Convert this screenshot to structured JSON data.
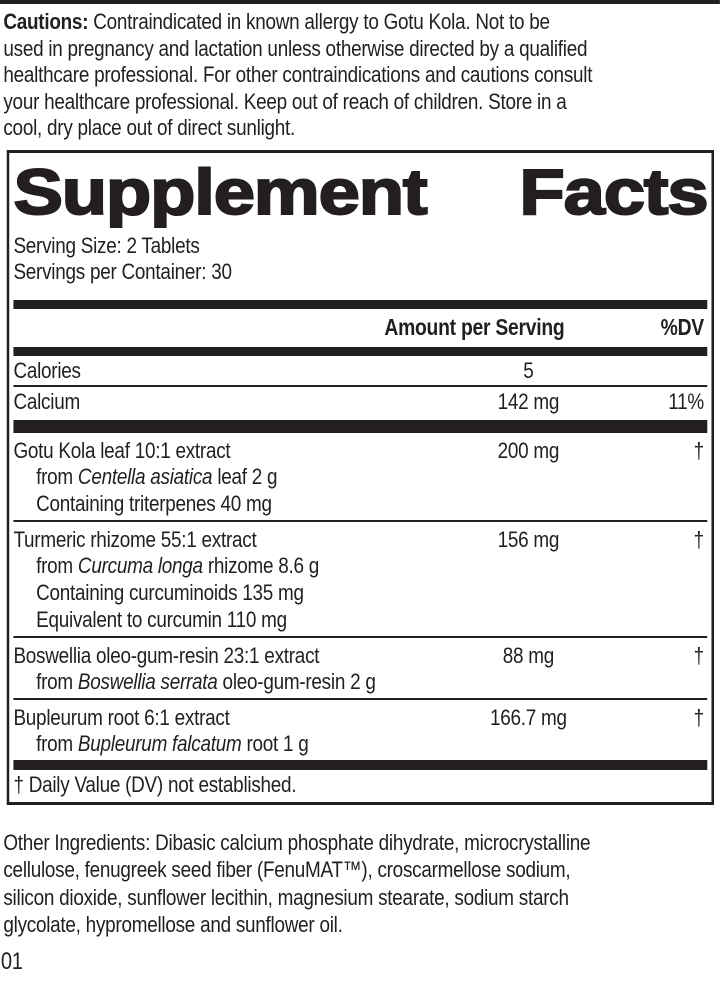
{
  "colors": {
    "ink": "#231f20"
  },
  "cautions": {
    "label": "Cautions:",
    "lines": [
      " Contraindicated in known allergy to Gotu Kola. Not to be",
      "used in pregnancy and lactation unless otherwise directed by a qualified",
      "healthcare professional. For other contraindications and cautions consult",
      "your healthcare professional. Keep out of reach of children. Store in a",
      "cool, dry place out of direct sunlight."
    ]
  },
  "facts": {
    "title_word1": "Supplement",
    "title_word2": "Facts",
    "serving_size": "Serving Size: 2 Tablets",
    "servings_per_container": "Servings per Container: 30",
    "columns": {
      "amount": "Amount per Serving",
      "dv": "%DV"
    },
    "nutrients": [
      {
        "name": "Calories",
        "amount": "5",
        "dv": ""
      },
      {
        "name": "Calcium",
        "amount": "142 mg",
        "dv": "11%"
      }
    ],
    "ingredients": [
      {
        "name": "Gotu Kola leaf 10:1 extract",
        "amount": "200 mg",
        "dv": "†",
        "subs": [
          {
            "pre": "from ",
            "italic": "Centella asiatica",
            "post": " leaf 2 g"
          },
          {
            "pre": "Containing triterpenes 40 mg",
            "italic": "",
            "post": ""
          }
        ]
      },
      {
        "name": "Turmeric rhizome 55:1 extract",
        "amount": "156 mg",
        "dv": "†",
        "subs": [
          {
            "pre": "from ",
            "italic": "Curcuma longa",
            "post": " rhizome 8.6 g"
          },
          {
            "pre": "Containing curcuminoids 135 mg",
            "italic": "",
            "post": ""
          },
          {
            "pre": "Equivalent to curcumin 110 mg",
            "italic": "",
            "post": ""
          }
        ]
      },
      {
        "name": "Boswellia oleo-gum-resin 23:1 extract",
        "amount": "88 mg",
        "dv": "†",
        "subs": [
          {
            "pre": "from ",
            "italic": "Boswellia serrata",
            "post": " oleo-gum-resin 2 g"
          }
        ]
      },
      {
        "name": "Bupleurum root 6:1 extract",
        "amount": "166.7 mg",
        "dv": "†",
        "subs": [
          {
            "pre": "from ",
            "italic": "Bupleurum falcatum",
            "post": " root 1 g"
          }
        ]
      }
    ],
    "footnote": "† Daily Value (DV) not established."
  },
  "other_ingredients": {
    "lines": [
      "Other Ingredients: Dibasic calcium phosphate dihydrate, microcrystalline",
      "cellulose, fenugreek seed fiber (FenuMAT™), croscarmellose sodium,",
      "silicon dioxide, sunflower lecithin, magnesium stearate, sodium starch",
      "glycolate, hypromellose and sunflower oil."
    ]
  },
  "footer_code": "01"
}
